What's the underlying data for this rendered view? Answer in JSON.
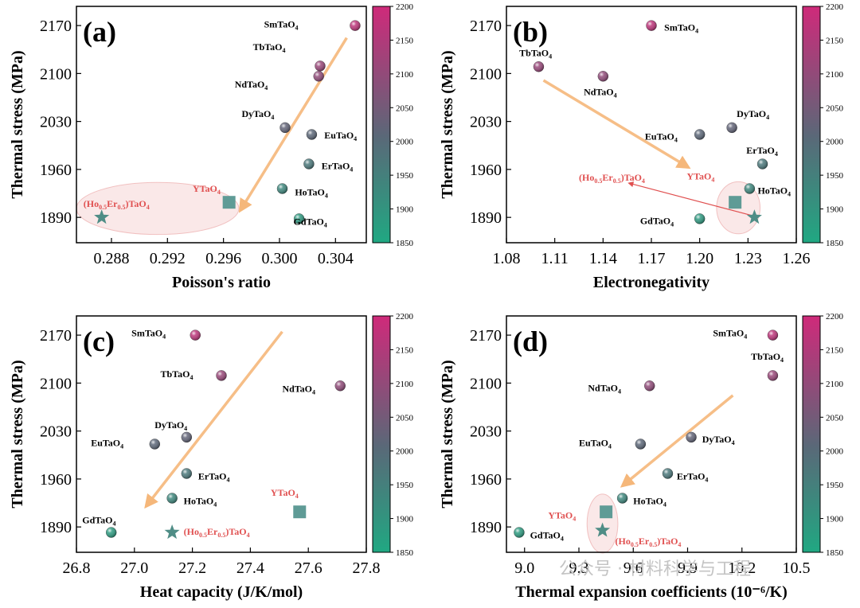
{
  "colorbar": {
    "min": 1850,
    "max": 2200,
    "ticks": [
      1850,
      1900,
      1950,
      2000,
      2050,
      2100,
      2150,
      2200
    ],
    "low_color": "#20a882",
    "mid_color": "#5a6878",
    "high_color": "#cf2a7a"
  },
  "watermark": "公众号 · 材料科学与工程",
  "chart_data": [
    {
      "type": "scatter",
      "panel": "(a)",
      "xlabel": "Poisson's ratio",
      "ylabel": "Thermal stress (MPa)",
      "xlim": [
        0.2855,
        0.3062
      ],
      "ylim": [
        1853,
        2198
      ],
      "xticks": [
        0.288,
        0.292,
        0.296,
        0.3,
        0.304
      ],
      "xtick_labels": [
        "0.288",
        "0.292",
        "0.296",
        "0.300",
        "0.304"
      ],
      "yticks": [
        1890,
        1960,
        2030,
        2100,
        2170
      ],
      "points": [
        {
          "name": "SmTaO4",
          "label_base": "SmTaO",
          "label_sub": "4",
          "x": 0.3054,
          "y": 2170,
          "lx": -0.0065,
          "ly": 2,
          "marker": "sphere"
        },
        {
          "name": "TbTaO4",
          "label_base": "TbTaO",
          "label_sub": "4",
          "x": 0.3029,
          "y": 2111,
          "lx": -0.0048,
          "ly": 28,
          "marker": "sphere"
        },
        {
          "name": "NdTaO4",
          "label_base": "NdTaO",
          "label_sub": "4",
          "x": 0.3028,
          "y": 2096,
          "lx": -0.006,
          "ly": -12,
          "marker": "sphere"
        },
        {
          "name": "DyTaO4",
          "label_base": "DyTaO",
          "label_sub": "4",
          "x": 0.3004,
          "y": 2021,
          "lx": -0.0031,
          "ly": 20,
          "marker": "sphere"
        },
        {
          "name": "EuTaO4",
          "label_base": "EuTaO",
          "label_sub": "4",
          "x": 0.3023,
          "y": 2011,
          "lx": 0.0009,
          "ly": -1,
          "marker": "sphere"
        },
        {
          "name": "ErTaO4",
          "label_base": "ErTaO",
          "label_sub": "4",
          "x": 0.3021,
          "y": 1968,
          "lx": 0.0009,
          "ly": -3,
          "marker": "sphere"
        },
        {
          "name": "HoTaO4",
          "label_base": "HoTaO",
          "label_sub": "4",
          "x": 0.3002,
          "y": 1932,
          "lx": 0.0009,
          "ly": -5,
          "marker": "sphere"
        },
        {
          "name": "GdTaO4",
          "label_base": "GdTaO",
          "label_sub": "4",
          "x": 0.3014,
          "y": 1888,
          "lx": -0.0004,
          "ly": -4,
          "marker": "sphere"
        },
        {
          "name": "YTaO4",
          "label_base": "YTaO",
          "label_sub": "4",
          "x": 0.2964,
          "y": 1912,
          "lx": -0.0026,
          "ly": 20,
          "marker": "square",
          "red": true
        },
        {
          "name": "(Ho0.5Er0.5)TaO4",
          "label_rich": "(Ho|0.5|Er|0.5|)TaO|4",
          "x": 0.2873,
          "y": 1890,
          "lx": -0.0013,
          "ly": 20,
          "marker": "star",
          "red": true
        }
      ],
      "arrows": [
        {
          "x1": 0.3048,
          "y1": 2152,
          "x2": 0.2972,
          "y2": 1900,
          "color": "#f5b77a"
        }
      ],
      "ellipses": [
        {
          "cx": 0.2913,
          "cy": 1903,
          "rx": 0.0058,
          "ry": 38
        }
      ]
    },
    {
      "type": "scatter",
      "panel": "(b)",
      "xlabel": "Electronegativity",
      "ylabel": "Thermal stress (MPa)",
      "xlim": [
        1.08,
        1.26
      ],
      "ylim": [
        1853,
        2198
      ],
      "xticks": [
        1.08,
        1.11,
        1.14,
        1.17,
        1.2,
        1.23,
        1.26
      ],
      "xtick_labels": [
        "1.08",
        "1.11",
        "1.14",
        "1.17",
        "1.20",
        "1.23",
        "1.26"
      ],
      "yticks": [
        1890,
        1960,
        2030,
        2100,
        2170
      ],
      "points": [
        {
          "name": "SmTaO4",
          "label_base": "SmTaO",
          "label_sub": "4",
          "x": 1.17,
          "y": 2170,
          "lx": 0.008,
          "ly": -3,
          "marker": "sphere"
        },
        {
          "name": "TbTaO4",
          "label_base": "TbTaO",
          "label_sub": "4",
          "x": 1.1,
          "y": 2110,
          "lx": -0.012,
          "ly": 20,
          "marker": "sphere"
        },
        {
          "name": "NdTaO4",
          "label_base": "NdTaO",
          "label_sub": "4",
          "x": 1.14,
          "y": 2096,
          "lx": -0.012,
          "ly": -23,
          "marker": "sphere"
        },
        {
          "name": "DyTaO4",
          "label_base": "DyTaO",
          "label_sub": "4",
          "x": 1.22,
          "y": 2021,
          "lx": 0.003,
          "ly": 20,
          "marker": "sphere"
        },
        {
          "name": "EuTaO4",
          "label_base": "EuTaO",
          "label_sub": "4",
          "x": 1.2,
          "y": 2011,
          "lx": -0.034,
          "ly": -3,
          "marker": "sphere"
        },
        {
          "name": "ErTaO4",
          "label_base": "ErTaO",
          "label_sub": "4",
          "x": 1.239,
          "y": 1968,
          "lx": -0.01,
          "ly": 20,
          "marker": "sphere"
        },
        {
          "name": "HoTaO4",
          "label_base": "HoTaO",
          "label_sub": "4",
          "x": 1.231,
          "y": 1932,
          "lx": 0.005,
          "ly": -3,
          "marker": "sphere"
        },
        {
          "name": "GdTaO4",
          "label_base": "GdTaO",
          "label_sub": "4",
          "x": 1.2,
          "y": 1888,
          "lx": -0.037,
          "ly": -3,
          "marker": "sphere"
        },
        {
          "name": "YTaO4",
          "label_base": "YTaO",
          "label_sub": "4",
          "x": 1.222,
          "y": 1912,
          "lx": -0.03,
          "ly": 38,
          "marker": "square",
          "red": true
        },
        {
          "name": "(Ho0.5Er0.5)TaO4",
          "label_rich": "(Ho|0.5|Er|0.5|)TaO|4",
          "x": 1.234,
          "y": 1890,
          "lx": -0.109,
          "ly": 58,
          "marker": "star",
          "red": true
        }
      ],
      "arrows": [
        {
          "x1": 1.103,
          "y1": 2090,
          "x2": 1.193,
          "y2": 1963,
          "color": "#f5b77a"
        },
        {
          "x1": 1.232,
          "y1": 1893,
          "x2": 1.156,
          "y2": 1940,
          "color": "#e05050",
          "thin": true
        }
      ],
      "ellipses": [
        {
          "cx": 1.224,
          "cy": 1904,
          "rx": 0.0135,
          "ry": 38
        }
      ]
    },
    {
      "type": "scatter",
      "panel": "(c)",
      "xlabel": "Heat capacity (J/K/mol)",
      "ylabel": "Thermal stress (MPa)",
      "xlim": [
        26.8,
        27.8
      ],
      "ylim": [
        1853,
        2198
      ],
      "xticks": [
        26.8,
        27.0,
        27.2,
        27.4,
        27.6,
        27.8
      ],
      "xtick_labels": [
        "26.8",
        "27.0",
        "27.2",
        "27.4",
        "27.6",
        "27.8"
      ],
      "yticks": [
        1890,
        1960,
        2030,
        2100,
        2170
      ],
      "points": [
        {
          "name": "SmTaO4",
          "label_base": "SmTaO",
          "label_sub": "4",
          "x": 27.21,
          "y": 2170,
          "lx": -0.22,
          "ly": 3,
          "marker": "sphere"
        },
        {
          "name": "TbTaO4",
          "label_base": "TbTaO",
          "label_sub": "4",
          "x": 27.3,
          "y": 2111,
          "lx": -0.21,
          "ly": 2,
          "marker": "sphere"
        },
        {
          "name": "NdTaO4",
          "label_base": "NdTaO",
          "label_sub": "4",
          "x": 27.71,
          "y": 2096,
          "lx": -0.2,
          "ly": -4,
          "marker": "sphere"
        },
        {
          "name": "DyTaO4",
          "label_base": "DyTaO",
          "label_sub": "4",
          "x": 27.18,
          "y": 2021,
          "lx": -0.11,
          "ly": 18,
          "marker": "sphere"
        },
        {
          "name": "EuTaO4",
          "label_base": "EuTaO",
          "label_sub": "4",
          "x": 27.07,
          "y": 2011,
          "lx": -0.22,
          "ly": 2,
          "marker": "sphere"
        },
        {
          "name": "ErTaO4",
          "label_base": "ErTaO",
          "label_sub": "4",
          "x": 27.18,
          "y": 1968,
          "lx": 0.04,
          "ly": -4,
          "marker": "sphere"
        },
        {
          "name": "HoTaO4",
          "label_base": "HoTaO",
          "label_sub": "4",
          "x": 27.13,
          "y": 1932,
          "lx": 0.04,
          "ly": -4,
          "marker": "sphere"
        },
        {
          "name": "GdTaO4",
          "label_base": "GdTaO",
          "label_sub": "4",
          "x": 26.92,
          "y": 1882,
          "lx": -0.1,
          "ly": 18,
          "marker": "sphere"
        },
        {
          "name": "YTaO4",
          "label_base": "YTaO",
          "label_sub": "4",
          "x": 27.57,
          "y": 1912,
          "lx": -0.1,
          "ly": 28,
          "marker": "square",
          "red": true
        },
        {
          "name": "(Ho0.5Er0.5)TaO4",
          "label_rich": "(Ho|0.5|Er|0.5|)TaO|4",
          "x": 27.13,
          "y": 1882,
          "lx": 0.04,
          "ly": 1,
          "marker": "star",
          "red": true
        }
      ],
      "arrows": [
        {
          "x1": 27.51,
          "y1": 2175,
          "x2": 27.04,
          "y2": 1920,
          "color": "#f5b77a"
        }
      ],
      "ellipses": []
    },
    {
      "type": "scatter",
      "panel": "(d)",
      "xlabel": "Thermal expansion coefficients (10⁻⁶/K)",
      "ylabel": "Thermal stress (MPa)",
      "xlim": [
        8.9,
        10.5
      ],
      "ylim": [
        1853,
        2198
      ],
      "xticks": [
        9.0,
        9.3,
        9.6,
        9.9,
        10.2,
        10.5
      ],
      "xtick_labels": [
        "9.0",
        "9.3",
        "9.6",
        "9.9",
        "10.2",
        "10.5"
      ],
      "yticks": [
        1890,
        1960,
        2030,
        2100,
        2170
      ],
      "points": [
        {
          "name": "SmTaO4",
          "label_base": "SmTaO",
          "label_sub": "4",
          "x": 10.37,
          "y": 2170,
          "lx": -0.33,
          "ly": 3,
          "marker": "sphere"
        },
        {
          "name": "TbTaO4",
          "label_base": "TbTaO",
          "label_sub": "4",
          "x": 10.37,
          "y": 2111,
          "lx": -0.12,
          "ly": 28,
          "marker": "sphere"
        },
        {
          "name": "NdTaO4",
          "label_base": "NdTaO",
          "label_sub": "4",
          "x": 9.69,
          "y": 2096,
          "lx": -0.34,
          "ly": -3,
          "marker": "sphere"
        },
        {
          "name": "DyTaO4",
          "label_base": "DyTaO",
          "label_sub": "4",
          "x": 9.92,
          "y": 2021,
          "lx": 0.06,
          "ly": -3,
          "marker": "sphere"
        },
        {
          "name": "EuTaO4",
          "label_base": "EuTaO",
          "label_sub": "4",
          "x": 9.64,
          "y": 2011,
          "lx": -0.34,
          "ly": 2,
          "marker": "sphere"
        },
        {
          "name": "ErTaO4",
          "label_base": "ErTaO",
          "label_sub": "4",
          "x": 9.79,
          "y": 1968,
          "lx": 0.05,
          "ly": -4,
          "marker": "sphere"
        },
        {
          "name": "HoTaO4",
          "label_base": "HoTaO",
          "label_sub": "4",
          "x": 9.54,
          "y": 1932,
          "lx": 0.06,
          "ly": -4,
          "marker": "sphere"
        },
        {
          "name": "GdTaO4",
          "label_base": "GdTaO",
          "label_sub": "4",
          "x": 8.97,
          "y": 1882,
          "lx": 0.06,
          "ly": -4,
          "marker": "sphere"
        },
        {
          "name": "YTaO4",
          "label_base": "YTaO",
          "label_sub": "4",
          "x": 9.45,
          "y": 1912,
          "lx": -0.32,
          "ly": -5,
          "marker": "square",
          "red": true
        },
        {
          "name": "(Ho0.5Er0.5)TaO4",
          "label_rich": "(Ho|0.5|Er|0.5|)TaO|4",
          "x": 9.43,
          "y": 1885,
          "lx": 0.07,
          "ly": -16,
          "marker": "star",
          "red": true
        }
      ],
      "arrows": [
        {
          "x1": 10.15,
          "y1": 2082,
          "x2": 9.54,
          "y2": 1950,
          "color": "#f5b77a"
        }
      ],
      "ellipses": [
        {
          "cx": 9.43,
          "cy": 1895,
          "rx": 0.085,
          "ry": 43
        }
      ]
    }
  ]
}
